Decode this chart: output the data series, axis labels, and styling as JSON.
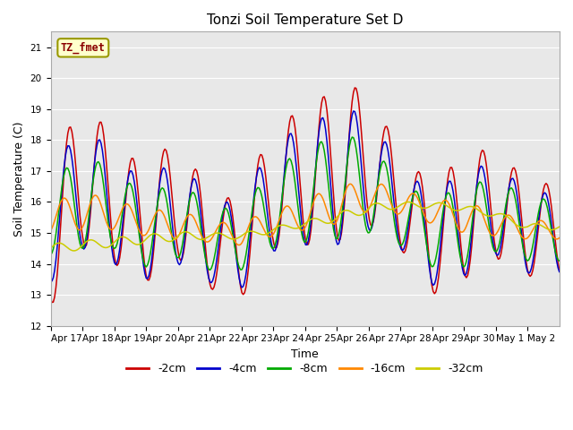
{
  "title": "Tonzi Soil Temperature Set D",
  "xlabel": "Time",
  "ylabel": "Soil Temperature (C)",
  "ylim": [
    12.0,
    21.5
  ],
  "yticks": [
    12.0,
    13.0,
    14.0,
    15.0,
    16.0,
    17.0,
    18.0,
    19.0,
    20.0,
    21.0
  ],
  "background_color": "#e8e8e8",
  "legend_label": "TZ_fmet",
  "series_labels": [
    "-2cm",
    "-4cm",
    "-8cm",
    "-16cm",
    "-32cm"
  ],
  "series_colors": [
    "#cc0000",
    "#0000cc",
    "#00aa00",
    "#ff8800",
    "#cccc00"
  ],
  "xtick_labels": [
    "Apr 17",
    "Apr 18",
    "Apr 19",
    "Apr 20",
    "Apr 21",
    "Apr 22",
    "Apr 23",
    "Apr 24",
    "Apr 25",
    "Apr 26",
    "Apr 27",
    "Apr 28",
    "Apr 29",
    "Apr 30",
    "May 1",
    "May 2"
  ],
  "days": 16,
  "pts_per_day": 24,
  "day_means_2cm": [
    14.8,
    17.0,
    16.0,
    15.2,
    16.2,
    14.7,
    14.5,
    16.5,
    16.8,
    17.2,
    17.5,
    16.0,
    14.8,
    15.5,
    16.0,
    15.1
  ],
  "day_amps_2cm": [
    2.2,
    2.4,
    2.0,
    1.8,
    2.0,
    1.5,
    1.6,
    2.0,
    2.2,
    2.5,
    2.2,
    1.5,
    1.8,
    2.0,
    1.8,
    1.5
  ],
  "day_means_4cm": [
    15.2,
    16.5,
    15.8,
    15.0,
    15.8,
    14.7,
    14.6,
    16.2,
    16.5,
    16.8,
    17.0,
    15.8,
    14.8,
    15.3,
    15.8,
    15.0
  ],
  "day_amps_4cm": [
    1.8,
    2.0,
    1.8,
    1.5,
    1.8,
    1.3,
    1.4,
    1.8,
    1.9,
    2.2,
    1.9,
    1.3,
    1.5,
    1.7,
    1.5,
    1.3
  ],
  "day_means_8cm": [
    15.5,
    16.0,
    15.8,
    15.0,
    15.5,
    14.8,
    14.8,
    15.8,
    16.2,
    16.5,
    16.5,
    15.6,
    15.0,
    15.2,
    15.6,
    15.1
  ],
  "day_amps_8cm": [
    1.2,
    1.5,
    1.3,
    1.1,
    1.3,
    1.0,
    1.0,
    1.3,
    1.5,
    1.7,
    1.5,
    1.0,
    1.1,
    1.3,
    1.2,
    1.0
  ],
  "day_means_16cm": [
    15.5,
    15.7,
    15.6,
    15.3,
    15.3,
    15.0,
    15.0,
    15.3,
    15.6,
    15.9,
    16.2,
    16.0,
    15.7,
    15.5,
    15.3,
    15.1
  ],
  "day_amps_16cm": [
    0.5,
    0.6,
    0.5,
    0.4,
    0.5,
    0.3,
    0.4,
    0.4,
    0.5,
    0.6,
    0.5,
    0.4,
    0.4,
    0.5,
    0.4,
    0.3
  ],
  "day_means_32cm": [
    14.5,
    14.6,
    14.7,
    14.8,
    14.9,
    14.9,
    14.9,
    15.1,
    15.3,
    15.5,
    15.8,
    15.9,
    15.9,
    15.8,
    15.6,
    15.2
  ],
  "day_amps_32cm": [
    0.15,
    0.15,
    0.15,
    0.15,
    0.15,
    0.1,
    0.1,
    0.1,
    0.1,
    0.15,
    0.15,
    0.1,
    0.1,
    0.1,
    0.1,
    0.1
  ]
}
